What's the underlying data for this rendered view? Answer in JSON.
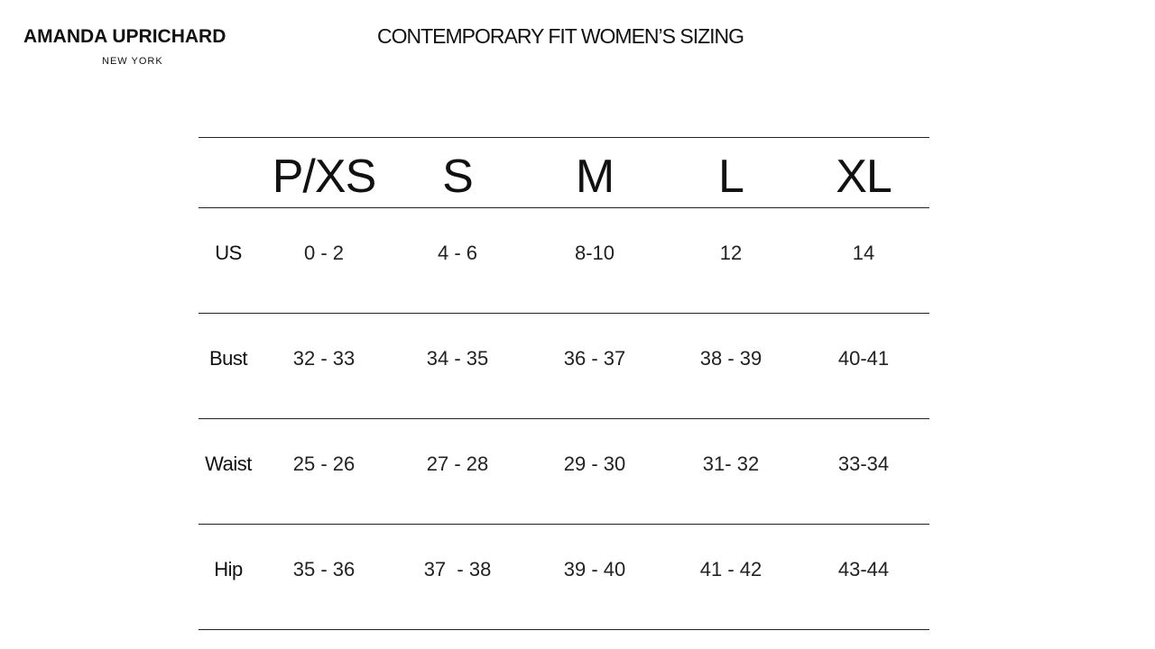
{
  "brand": {
    "name": "AMANDA UPRICHARD",
    "location": "NEW YORK"
  },
  "title": "CONTEMPORARY FIT WOMEN’S SIZING",
  "table": {
    "columns": [
      "P/XS",
      "S",
      "M",
      "L",
      "XL"
    ],
    "rows": [
      {
        "label": "US",
        "values": [
          "0 - 2",
          "4 - 6",
          "8-10",
          "12",
          "14"
        ]
      },
      {
        "label": "Bust",
        "values": [
          "32 - 33",
          "34 - 35",
          "36 - 37",
          "38 - 39",
          "40-41"
        ]
      },
      {
        "label": "Waist",
        "values": [
          "25 - 26",
          "27 - 28",
          "29 - 30",
          "31- 32",
          "33-34"
        ]
      },
      {
        "label": "Hip",
        "values": [
          "35 - 36",
          "37  - 38",
          "39 - 40",
          "41 - 42",
          "43-44"
        ]
      }
    ]
  }
}
